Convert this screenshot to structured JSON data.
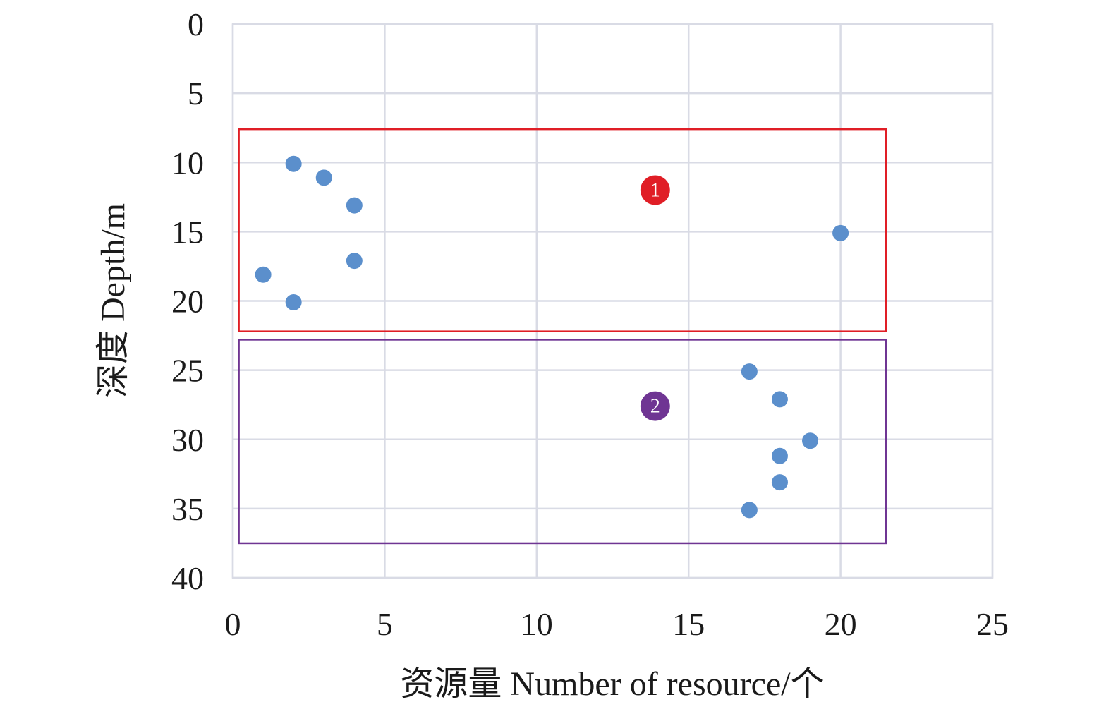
{
  "chart_data": {
    "type": "scatter",
    "xlabel": "资源量 Number of resource/个",
    "ylabel": "深度 Depth/m",
    "xlim": [
      0,
      25
    ],
    "ylim": [
      0,
      40
    ],
    "y_axis_inverted": true,
    "grid": true,
    "x_ticks": [
      "0",
      "5",
      "10",
      "15",
      "20",
      "25"
    ],
    "y_ticks": [
      "0",
      "5",
      "10",
      "15",
      "20",
      "25",
      "30",
      "35",
      "40"
    ],
    "point_color": "#5b8fcc",
    "series": [
      {
        "points": [
          {
            "x": 2,
            "y": 10.1
          },
          {
            "x": 3,
            "y": 11.1
          },
          {
            "x": 4,
            "y": 13.1
          },
          {
            "x": 20,
            "y": 15.1
          },
          {
            "x": 4,
            "y": 17.1
          },
          {
            "x": 1,
            "y": 18.1
          },
          {
            "x": 2,
            "y": 20.1
          },
          {
            "x": 17,
            "y": 25.1
          },
          {
            "x": 18,
            "y": 27.1
          },
          {
            "x": 19,
            "y": 30.1
          },
          {
            "x": 18,
            "y": 31.2
          },
          {
            "x": 18,
            "y": 33.1
          },
          {
            "x": 17,
            "y": 35.1
          }
        ]
      }
    ],
    "annotations": [
      {
        "label": "1",
        "color": "#e01e26",
        "x_range": [
          0.2,
          21.5
        ],
        "y_range": [
          7.6,
          22.2
        ],
        "badge": {
          "x": 13.9,
          "y": 12.0
        }
      },
      {
        "label": "2",
        "color": "#6f3593",
        "x_range": [
          0.2,
          21.5
        ],
        "y_range": [
          22.8,
          37.5
        ],
        "badge": {
          "x": 13.9,
          "y": 27.6
        }
      }
    ]
  }
}
